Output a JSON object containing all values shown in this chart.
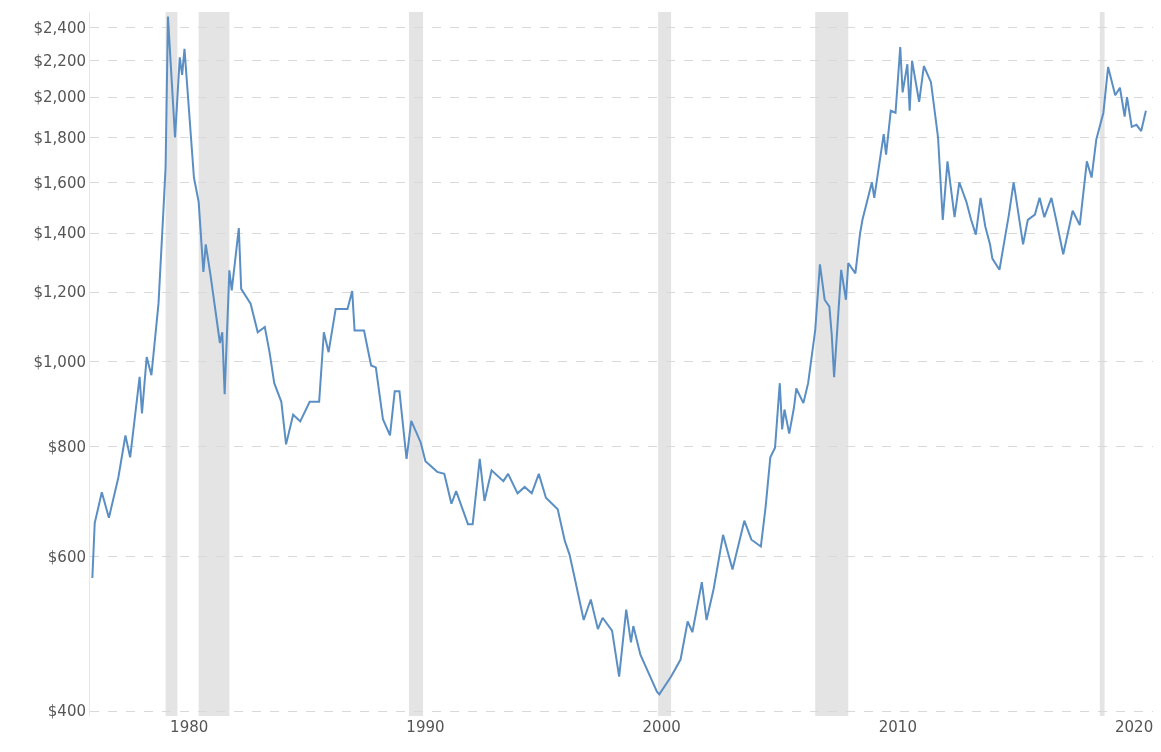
{
  "chart_data": {
    "type": "line",
    "log": "y",
    "grid": "y",
    "marker": "none",
    "line_style": "solid",
    "xlim": [
      1975.8,
      2020.8
    ],
    "ylim": [
      395,
      2500
    ],
    "xticks": [
      1980,
      1990,
      2000,
      2010,
      2020
    ],
    "yticks": [
      {
        "value": 400,
        "label": "$400"
      },
      {
        "value": 600,
        "label": "$600"
      },
      {
        "value": 800,
        "label": "$800"
      },
      {
        "value": 1000,
        "label": "$1,000"
      },
      {
        "value": 1200,
        "label": "$1,200"
      },
      {
        "value": 1400,
        "label": "$1,400"
      },
      {
        "value": 1600,
        "label": "$1,600"
      },
      {
        "value": 1800,
        "label": "$1,800"
      },
      {
        "value": 2000,
        "label": "$2,000"
      },
      {
        "value": 2200,
        "label": "$2,200"
      },
      {
        "value": 2400,
        "label": "$2,400"
      }
    ],
    "bands": [
      {
        "axis": "x",
        "from": 1979.0,
        "to": 1979.5,
        "color": "#e4e4e4"
      },
      {
        "axis": "x",
        "from": 1980.4,
        "to": 1981.7,
        "color": "#e4e4e4"
      },
      {
        "axis": "x",
        "from": 1989.3,
        "to": 1989.9,
        "color": "#e4e4e4"
      },
      {
        "axis": "x",
        "from": 1999.85,
        "to": 2000.4,
        "color": "#e4e4e4"
      },
      {
        "axis": "x",
        "from": 2006.5,
        "to": 2007.9,
        "color": "#e4e4e4"
      },
      {
        "axis": "x",
        "from": 2018.55,
        "to": 2018.75,
        "color": "#e4e4e4"
      }
    ],
    "series": [
      {
        "color": "#5b8fc4",
        "x": [
          1975.9,
          1976.0,
          1976.3,
          1976.6,
          1977.0,
          1977.3,
          1977.5,
          1977.9,
          1978.0,
          1978.2,
          1978.4,
          1978.7,
          1978.9,
          1979.0,
          1979.1,
          1979.4,
          1979.6,
          1979.7,
          1979.8,
          1980.2,
          1980.4,
          1980.6,
          1980.7,
          1980.9,
          1981.3,
          1981.4,
          1981.5,
          1981.7,
          1981.8,
          1982.1,
          1982.2,
          1982.6,
          1982.9,
          1983.2,
          1983.4,
          1983.6,
          1983.9,
          1984.1,
          1984.4,
          1984.7,
          1985.1,
          1985.5,
          1985.7,
          1985.9,
          1986.2,
          1986.7,
          1986.9,
          1987.0,
          1987.4,
          1987.7,
          1987.9,
          1988.2,
          1988.5,
          1988.7,
          1988.9,
          1989.2,
          1989.4,
          1989.8,
          1990.0,
          1990.5,
          1990.8,
          1991.1,
          1991.3,
          1991.8,
          1992.0,
          1992.3,
          1992.5,
          1992.8,
          1993.3,
          1993.5,
          1993.9,
          1994.2,
          1994.5,
          1994.8,
          1995.1,
          1995.6,
          1995.9,
          1996.1,
          1996.3,
          1996.7,
          1997.0,
          1997.3,
          1997.5,
          1997.9,
          1998.2,
          1998.5,
          1998.7,
          1998.8,
          1999.1,
          1999.8,
          1999.9,
          2000.4,
          2000.8,
          2001.1,
          2001.3,
          2001.7,
          2001.9,
          2002.2,
          2002.6,
          2003.0,
          2003.5,
          2003.8,
          2004.2,
          2004.4,
          2004.6,
          2004.8,
          2005.0,
          2005.1,
          2005.2,
          2005.4,
          2005.6,
          2005.7,
          2006.0,
          2006.2,
          2006.5,
          2006.7,
          2006.9,
          2007.1,
          2007.2,
          2007.3,
          2007.6,
          2007.8,
          2007.9,
          2008.2,
          2008.4,
          2008.5,
          2008.9,
          2009.0,
          2009.4,
          2009.5,
          2009.7,
          2009.9,
          2010.1,
          2010.2,
          2010.4,
          2010.5,
          2010.6,
          2010.9,
          2011.1,
          2011.4,
          2011.7,
          2011.9,
          2012.1,
          2012.4,
          2012.6,
          2012.9,
          2013.1,
          2013.3,
          2013.5,
          2013.7,
          2013.9,
          2014.0,
          2014.3,
          2014.7,
          2014.9,
          2015.3,
          2015.5,
          2015.8,
          2016.0,
          2016.2,
          2016.5,
          2016.7,
          2017.0,
          2017.4,
          2017.7,
          2018.0,
          2018.2,
          2018.4,
          2018.7,
          2018.9,
          2019.2,
          2019.4,
          2019.6,
          2019.7,
          2019.9,
          2020.1,
          2020.3,
          2020.5
        ],
        "values": [
          567,
          655,
          710,
          664,
          738,
          824,
          778,
          961,
          873,
          1012,
          965,
          1164,
          1473,
          1664,
          2470,
          1800,
          2220,
          2120,
          2270,
          1620,
          1520,
          1265,
          1360,
          1255,
          1050,
          1080,
          918,
          1270,
          1205,
          1419,
          1210,
          1164,
          1080,
          1095,
          1025,
          945,
          900,
          805,
          870,
          855,
          900,
          900,
          1080,
          1025,
          1148,
          1148,
          1203,
          1085,
          1085,
          990,
          985,
          860,
          824,
          925,
          925,
          775,
          856,
          809,
          770,
          749,
          745,
          689,
          712,
          653,
          653,
          775,
          694,
          752,
          731,
          745,
          708,
          720,
          708,
          745,
          700,
          679,
          625,
          603,
          570,
          508,
          536,
          496,
          511,
          494,
          438,
          522,
          479,
          500,
          464,
          421,
          418,
          438,
          458,
          506,
          492,
          561,
          508,
          551,
          635,
          580,
          659,
          627,
          616,
          683,
          778,
          798,
          945,
          837,
          882,
          828,
          886,
          932,
          897,
          945,
          1085,
          1290,
          1176,
          1155,
          1073,
          960,
          1272,
          1176,
          1295,
          1260,
          1400,
          1450,
          1600,
          1536,
          1815,
          1720,
          1930,
          1920,
          2280,
          2025,
          2180,
          1930,
          2200,
          1975,
          2170,
          2080,
          1800,
          1450,
          1690,
          1460,
          1600,
          1520,
          1450,
          1395,
          1536,
          1425,
          1360,
          1310,
          1272,
          1470,
          1600,
          1360,
          1450,
          1470,
          1536,
          1460,
          1536,
          1450,
          1325,
          1485,
          1430,
          1690,
          1620,
          1790,
          1920,
          2165,
          2010,
          2050,
          1900,
          2000,
          1850,
          1860,
          1830,
          1930
        ]
      }
    ]
  }
}
